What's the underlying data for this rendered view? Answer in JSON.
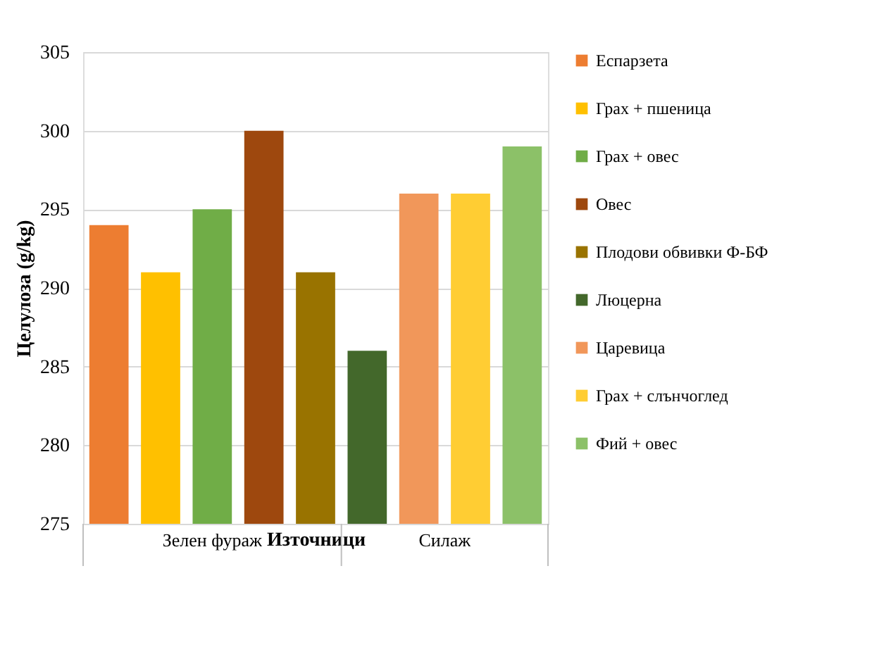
{
  "chart_data": {
    "type": "bar",
    "xlabel": "Източници",
    "ylabel": "Целулоза (g/kg)",
    "categories": [
      "Зелен фураж",
      "Силаж"
    ],
    "series": [
      {
        "name": "Еспарзета",
        "color": "#ed7d31",
        "values": [
          294,
          null
        ]
      },
      {
        "name": "Грах + пшеница",
        "color": "#ffc000",
        "values": [
          291,
          null
        ]
      },
      {
        "name": "Грах + овес",
        "color": "#70ad47",
        "values": [
          295,
          null
        ]
      },
      {
        "name": "Овес",
        "color": "#9e480e",
        "values": [
          300,
          null
        ]
      },
      {
        "name": "Плодови обвивки Ф-БФ",
        "color": "#997300",
        "values": [
          291,
          null
        ]
      },
      {
        "name": "Люцерна",
        "color": "#43682b",
        "values": [
          null,
          286
        ]
      },
      {
        "name": "Царевица",
        "color": "#f1975a",
        "values": [
          null,
          296
        ]
      },
      {
        "name": "Грах + слънчоглед",
        "color": "#ffcd33",
        "values": [
          null,
          296
        ]
      },
      {
        "name": "Фий + овес",
        "color": "#8cc168",
        "values": [
          null,
          299
        ]
      }
    ],
    "ylim": [
      275,
      305
    ],
    "yticks": [
      275,
      280,
      285,
      290,
      295,
      300,
      305
    ],
    "grid": "y",
    "legend": "right"
  }
}
